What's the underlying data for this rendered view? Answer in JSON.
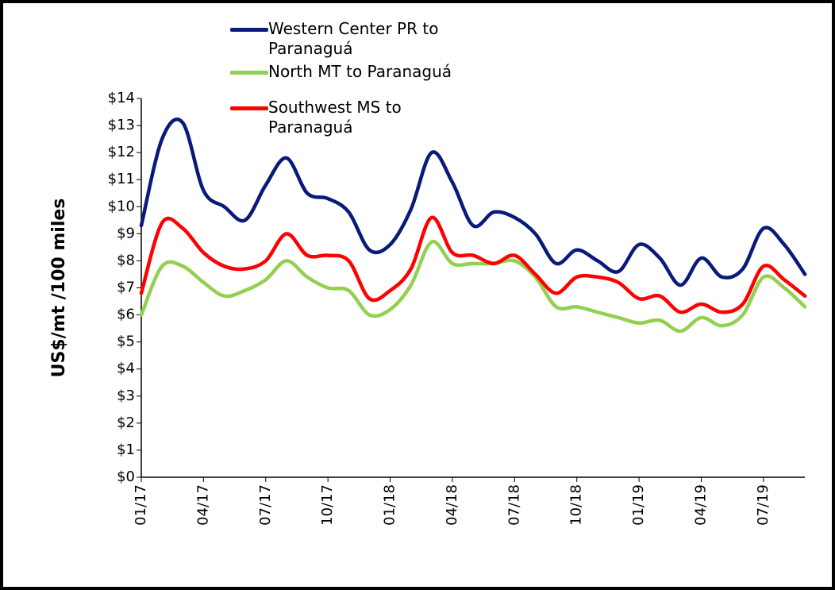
{
  "chart_data": {
    "type": "line",
    "ylabel": "US$/mt /100 miles",
    "categories": [
      "01/17",
      null,
      null,
      "04/17",
      null,
      null,
      "07/17",
      null,
      null,
      "10/17",
      null,
      null,
      "01/18",
      null,
      null,
      "04/18",
      null,
      null,
      "07/18",
      null,
      null,
      "10/18",
      null,
      null,
      "01/19",
      null,
      null,
      "04/19",
      null,
      null,
      "07/19",
      null,
      null
    ],
    "series": [
      {
        "name": "Western Center PR to Paranaguá",
        "color": "#0a1a7a",
        "values": [
          9.3,
          12.5,
          13.1,
          10.6,
          10.0,
          9.5,
          10.8,
          11.8,
          10.5,
          10.3,
          9.8,
          8.4,
          8.6,
          9.9,
          12.0,
          10.9,
          9.3,
          9.8,
          9.6,
          9.0,
          7.9,
          8.4,
          8.0,
          7.6,
          8.6,
          8.1,
          7.1,
          8.1,
          7.4,
          7.7,
          9.2,
          8.6,
          7.5
        ]
      },
      {
        "name": "North MT to Paranaguá",
        "color": "#92d050",
        "values": [
          6.0,
          7.8,
          7.8,
          7.2,
          6.7,
          6.9,
          7.3,
          8.0,
          7.4,
          7.0,
          6.9,
          6.0,
          6.2,
          7.1,
          8.7,
          7.9,
          7.9,
          7.9,
          8.0,
          7.4,
          6.3,
          6.3,
          6.1,
          5.9,
          5.7,
          5.8,
          5.4,
          5.9,
          5.6,
          6.0,
          7.4,
          7.0,
          6.3
        ]
      },
      {
        "name": "Southwest MS to Paranaguá",
        "color": "#ff0000",
        "values": [
          6.8,
          9.4,
          9.2,
          8.3,
          7.8,
          7.7,
          8.0,
          9.0,
          8.2,
          8.2,
          8.0,
          6.6,
          6.9,
          7.7,
          9.6,
          8.3,
          8.2,
          7.9,
          8.2,
          7.5,
          6.8,
          7.4,
          7.4,
          7.2,
          6.6,
          6.7,
          6.1,
          6.4,
          6.1,
          6.4,
          7.8,
          7.3,
          6.7
        ]
      }
    ],
    "ylim": [
      0,
      14
    ],
    "yticks": [
      {
        "value": 0,
        "label": "$0"
      },
      {
        "value": 1,
        "label": "$1"
      },
      {
        "value": 2,
        "label": "$2"
      },
      {
        "value": 3,
        "label": "$3"
      },
      {
        "value": 4,
        "label": "$4"
      },
      {
        "value": 5,
        "label": "$5"
      },
      {
        "value": 6,
        "label": "$6"
      },
      {
        "value": 7,
        "label": "$7"
      },
      {
        "value": 8,
        "label": "$8"
      },
      {
        "value": 9,
        "label": "$9"
      },
      {
        "value": 10,
        "label": "$10"
      },
      {
        "value": 11,
        "label": "$11"
      },
      {
        "value": 12,
        "label": "$12"
      },
      {
        "value": 13,
        "label": "$13"
      },
      {
        "value": 14,
        "label": "$14"
      }
    ],
    "grid": false
  }
}
